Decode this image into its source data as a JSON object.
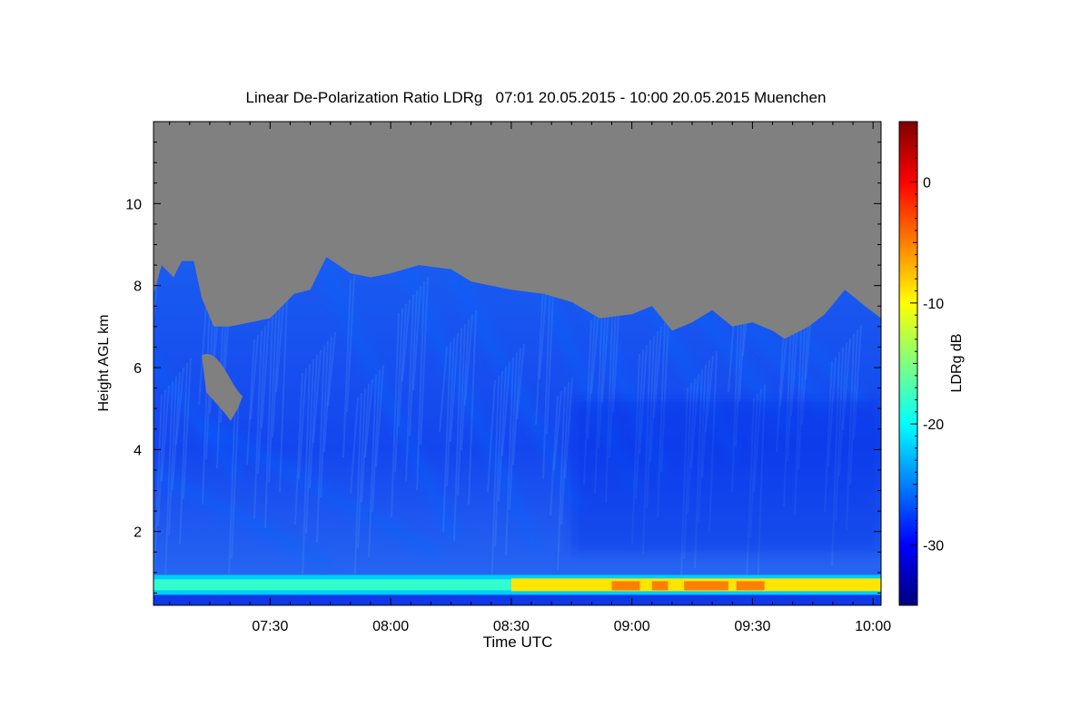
{
  "chart_data": {
    "type": "heatmap",
    "title": "Linear De-Polarization Ratio LDRg   07:01 20.05.2015 - 10:00 20.05.2015 Muenchen",
    "xlabel": "Time UTC",
    "ylabel": "Height AGL km",
    "colorbar_label": "LDRg dB",
    "x_range": [
      "07:01",
      "10:02"
    ],
    "x_ticks": [
      "07:30",
      "08:00",
      "08:30",
      "09:00",
      "09:30",
      "10:00"
    ],
    "ylim": [
      0.2,
      12
    ],
    "y_ticks": [
      2,
      4,
      6,
      8,
      10
    ],
    "colorbar_range": [
      -35,
      5
    ],
    "colorbar_ticks": [
      0,
      -10,
      -20,
      -30
    ],
    "colormap": [
      "#00007f",
      "#0000ff",
      "#007fff",
      "#00ffff",
      "#7fff7f",
      "#ffff00",
      "#ff7f00",
      "#ff0000",
      "#7f0000"
    ],
    "missing_color": "#808080",
    "signal_top_km": [
      {
        "t": "07:01",
        "h": 7.8
      },
      {
        "t": "07:03",
        "h": 8.5
      },
      {
        "t": "07:06",
        "h": 8.2
      },
      {
        "t": "07:08",
        "h": 8.6
      },
      {
        "t": "07:11",
        "h": 8.6
      },
      {
        "t": "07:13",
        "h": 7.7
      },
      {
        "t": "07:16",
        "h": 7.0
      },
      {
        "t": "07:20",
        "h": 7.0
      },
      {
        "t": "07:25",
        "h": 7.1
      },
      {
        "t": "07:30",
        "h": 7.2
      },
      {
        "t": "07:36",
        "h": 7.8
      },
      {
        "t": "07:40",
        "h": 7.9
      },
      {
        "t": "07:44",
        "h": 8.7
      },
      {
        "t": "07:50",
        "h": 8.3
      },
      {
        "t": "07:55",
        "h": 8.2
      },
      {
        "t": "08:00",
        "h": 8.3
      },
      {
        "t": "08:07",
        "h": 8.5
      },
      {
        "t": "08:15",
        "h": 8.4
      },
      {
        "t": "08:20",
        "h": 8.1
      },
      {
        "t": "08:30",
        "h": 7.9
      },
      {
        "t": "08:38",
        "h": 7.8
      },
      {
        "t": "08:45",
        "h": 7.6
      },
      {
        "t": "08:52",
        "h": 7.2
      },
      {
        "t": "09:00",
        "h": 7.3
      },
      {
        "t": "09:05",
        "h": 7.5
      },
      {
        "t": "09:10",
        "h": 6.9
      },
      {
        "t": "09:15",
        "h": 7.1
      },
      {
        "t": "09:20",
        "h": 7.4
      },
      {
        "t": "09:25",
        "h": 7.0
      },
      {
        "t": "09:30",
        "h": 7.1
      },
      {
        "t": "09:35",
        "h": 6.9
      },
      {
        "t": "09:38",
        "h": 6.7
      },
      {
        "t": "09:44",
        "h": 7.0
      },
      {
        "t": "09:48",
        "h": 7.3
      },
      {
        "t": "09:53",
        "h": 7.9
      },
      {
        "t": "09:58",
        "h": 7.5
      },
      {
        "t": "10:02",
        "h": 7.2
      }
    ],
    "gap_region": {
      "t_start": "07:13",
      "t_end": "07:22",
      "h_bottom": 4.7,
      "h_top": 6.3
    },
    "boundary_layer": {
      "h_km": 0.7,
      "ldr_db_early": -18,
      "ldr_db_late": -9
    },
    "background_ldr_db": -30
  }
}
